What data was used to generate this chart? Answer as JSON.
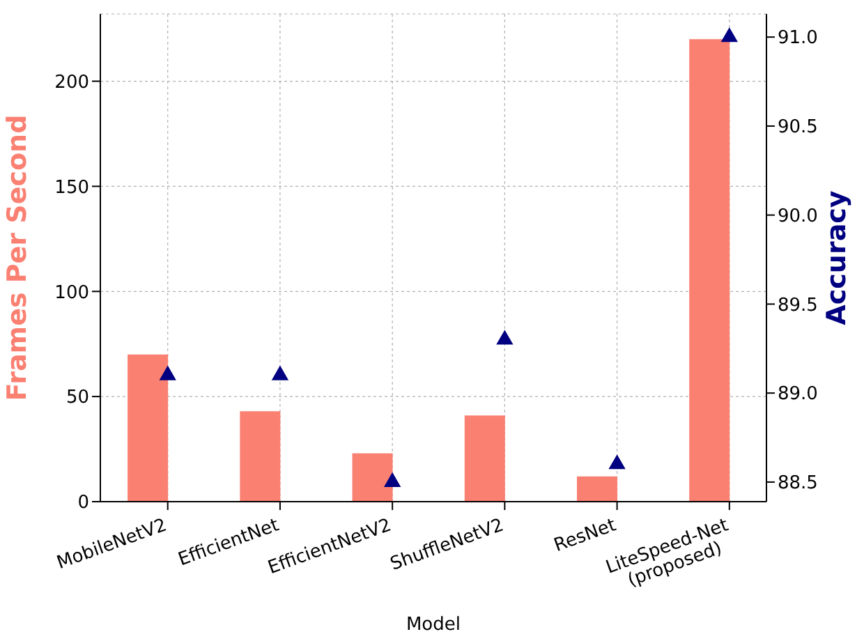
{
  "chart_data": {
    "type": "bar",
    "xlabel": "Model",
    "ylabel": "Frames Per Second",
    "y2label": "Accuracy",
    "categories": [
      "MobileNetV2",
      "EfficientNet",
      "EfficientNetV2",
      "ShuffleNetV2",
      "ResNet",
      "LiteSpeed-Net\n(proposed)"
    ],
    "series": [
      {
        "color": "#fa8072",
        "values": [
          70,
          43,
          23,
          41,
          12,
          220
        ]
      },
      {
        "type": "scatter",
        "axis": "y2",
        "color": "#000080",
        "marker": "triangle",
        "values": [
          89.1,
          89.1,
          88.5,
          89.3,
          88.6,
          91.0
        ]
      }
    ],
    "ylim": [
      0,
      232
    ],
    "yticks": [
      0,
      50,
      100,
      150,
      200
    ],
    "y2lim": [
      88.39,
      91.13
    ],
    "y2ticks": [
      {
        "value": 88.5,
        "label": "88.5"
      },
      {
        "value": 89.0,
        "label": "89.0"
      },
      {
        "value": 89.5,
        "label": "89.5"
      },
      {
        "value": 90.0,
        "label": "90.0"
      },
      {
        "value": 90.5,
        "label": "90.5"
      },
      {
        "value": 91.0,
        "label": "91.0"
      }
    ],
    "grid": true,
    "legend": false
  }
}
